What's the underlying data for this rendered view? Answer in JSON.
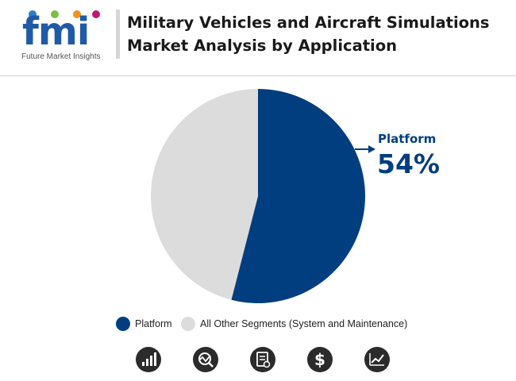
{
  "header": {
    "logo_text": "fmi",
    "logo_tagline": "Future Market Insights",
    "title_line1": "Military Vehicles and Aircraft Simulations",
    "title_line2": "Market Analysis by Application"
  },
  "colors": {
    "platform": "#003e80",
    "other": "#dcdcdc",
    "icon_bg": "#2b2b2b"
  },
  "chart_data": {
    "type": "pie",
    "slices": [
      {
        "label": "Platform",
        "value": 54,
        "color": "#003e80"
      },
      {
        "label": "All Other Segments (System and Maintenance)",
        "value": 46,
        "color": "#dcdcdc"
      }
    ],
    "callout": {
      "label": "Platform",
      "value_text": "54%"
    },
    "legend": [
      "Platform",
      "All Other Segments (System and Maintenance)"
    ],
    "legend_position": "bottom"
  },
  "footer_icons": [
    "signal-bars-icon",
    "analytics-icon",
    "report-icon",
    "dollar-icon",
    "trend-chart-icon"
  ]
}
